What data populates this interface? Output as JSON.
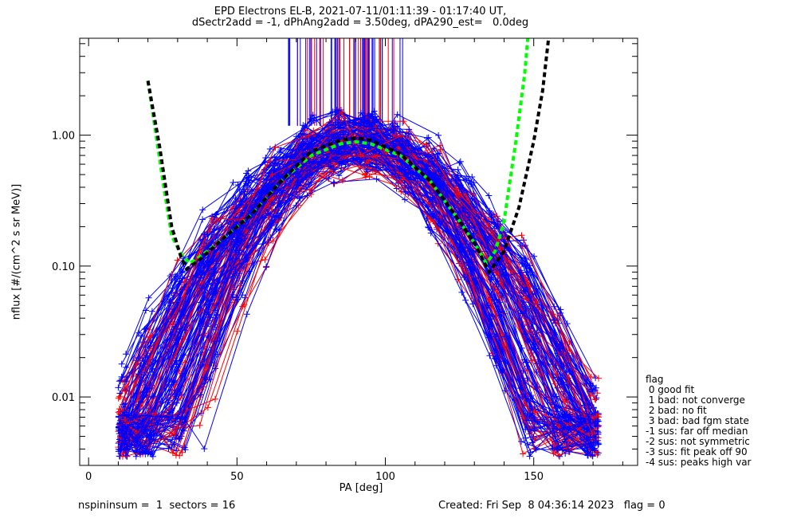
{
  "header": {
    "title_line1": "EPD Electrons EL-B, 2021-07-11/01:11:39 - 01:17:40 UT,",
    "title_line2": "dSectr2add = -1, dPhAng2add = 3.50deg, dPA290_est=   0.0deg"
  },
  "footer": {
    "left": "nspininsum =  1  sectors = 16",
    "right": "Created: Fri Sep  8 04:36:14 2023   flag = 0"
  },
  "legend": {
    "title": "flag",
    "items": [
      " 0 good fit",
      " 1 bad: not converge",
      " 2 bad: no fit",
      " 3 bad: bad fgm state",
      "-1 sus: far off median",
      "-2 sus: not symmetric",
      "-3 sus: fit peak off 90",
      "-4 sus: peaks high var"
    ]
  },
  "chart_data": {
    "type": "line",
    "xlabel": "PA [deg]",
    "ylabel": "nflux [#/(cm^2 s sr MeV)]",
    "xlim": [
      -3,
      185
    ],
    "ylim": [
      0.003,
      5.5
    ],
    "yscale": "log",
    "xticks": [
      0,
      50,
      100,
      150
    ],
    "xticklabels": [
      "0",
      "50",
      "100",
      "150"
    ],
    "yticks": [
      1.0,
      0.1,
      0.01
    ],
    "yticklabels": [
      "1.00",
      "0.10",
      "0.01"
    ],
    "colors": {
      "blue": "#0000ff",
      "red": "#ff0000",
      "green": "#00ff00",
      "black": "#000000"
    },
    "series": [
      {
        "color": "green",
        "style": "dashed-thick",
        "x": [
          20,
          25,
          28,
          31,
          34,
          38,
          45,
          55,
          65,
          75,
          85,
          90,
          95,
          105,
          115,
          125,
          130,
          134,
          137,
          140,
          144,
          147,
          148
        ],
        "y": [
          2.6,
          0.45,
          0.17,
          0.125,
          0.105,
          0.12,
          0.16,
          0.25,
          0.45,
          0.7,
          0.86,
          0.89,
          0.86,
          0.7,
          0.45,
          0.22,
          0.15,
          0.105,
          0.13,
          0.22,
          0.9,
          3.0,
          5.5
        ]
      },
      {
        "color": "black",
        "style": "dashed-thick",
        "x": [
          20,
          24,
          28,
          31,
          33,
          37,
          45,
          55,
          65,
          75,
          85,
          90,
          95,
          105,
          115,
          125,
          130,
          135,
          140,
          145,
          150,
          153,
          155
        ],
        "y": [
          2.6,
          0.8,
          0.2,
          0.12,
          0.095,
          0.11,
          0.16,
          0.25,
          0.45,
          0.75,
          0.92,
          0.95,
          0.92,
          0.72,
          0.45,
          0.22,
          0.15,
          0.09,
          0.13,
          0.28,
          0.9,
          2.2,
          5.5
        ]
      }
    ],
    "scan_profile": {
      "description_note": "",
      "blue_scans": 110,
      "red_scans": 45,
      "peak_pa": 90,
      "peak_range": [
        0.65,
        1.15
      ],
      "pa_range": [
        10,
        172
      ],
      "marker": "+"
    }
  }
}
